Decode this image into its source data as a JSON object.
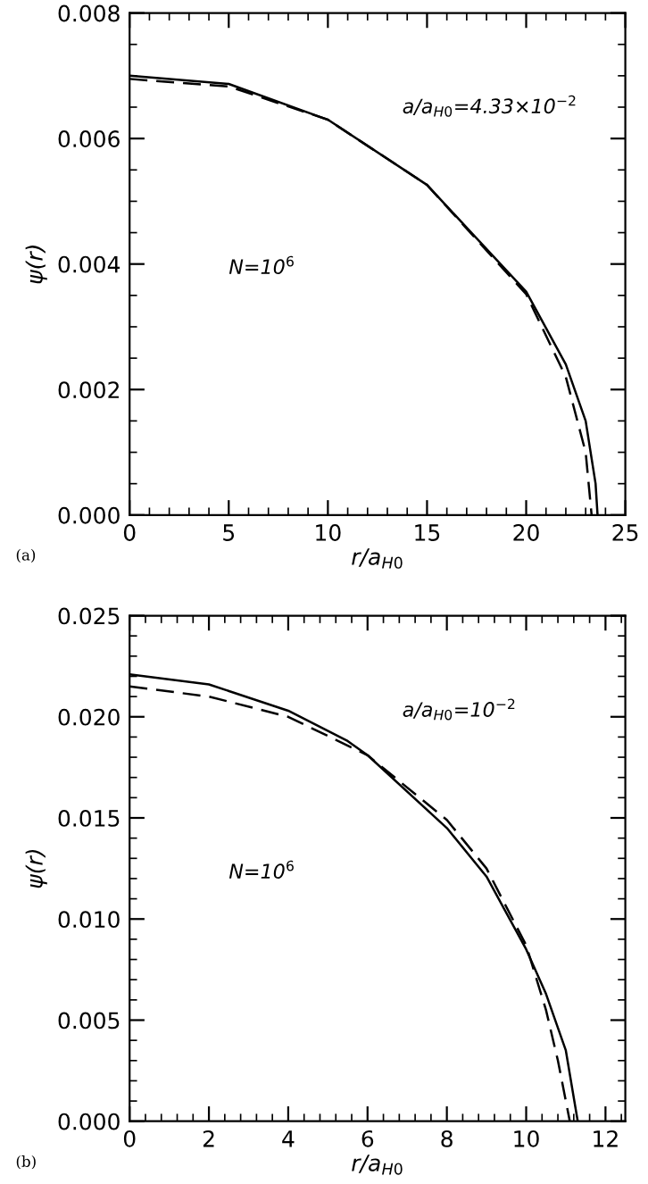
{
  "chart_data": [
    {
      "type": "line",
      "xlabel": "r/a$_{H0}$",
      "ylabel": "ψ(r)",
      "xlim": [
        0,
        25
      ],
      "ylim": [
        0,
        0.008
      ],
      "xticks": [
        0,
        5,
        10,
        15,
        20,
        25
      ],
      "yticks": [
        {
          "value": 0,
          "label": "0.000"
        },
        {
          "value": 0.002,
          "label": "0.002"
        },
        {
          "value": 0.004,
          "label": "0.004"
        },
        {
          "value": 0.006,
          "label": "0.006"
        },
        {
          "value": 0.008,
          "label": "0.008"
        }
      ],
      "grid": false,
      "legend": false,
      "annotations": [
        "a/a$_{H0}$=4.33×10$^{−2}$",
        "N=10$^{6}$",
        "(a)"
      ],
      "series": [
        {
          "color": "#000000",
          "line_style": "solid",
          "x": [
            0,
            5,
            10,
            15,
            20,
            22,
            23,
            23.5,
            23.6
          ],
          "values": [
            0.007,
            0.00687,
            0.0063,
            0.00526,
            0.00356,
            0.0024,
            0.0015,
            0.0005,
            0
          ]
        },
        {
          "color": "#000000",
          "line_style": "dashed",
          "x": [
            0,
            5,
            10,
            15,
            20,
            22,
            23,
            23.3
          ],
          "values": [
            0.00695,
            0.00683,
            0.0063,
            0.00526,
            0.00352,
            0.0022,
            0.001,
            0
          ]
        }
      ]
    },
    {
      "type": "line",
      "xlabel": "r/a$_{H0}$",
      "ylabel": "ψ(r)",
      "xlim": [
        0,
        12.5
      ],
      "ylim": [
        0,
        0.025
      ],
      "xticks": [
        0,
        2,
        4,
        6,
        8,
        10,
        12
      ],
      "yticks": [
        {
          "value": 0,
          "label": "0.000"
        },
        {
          "value": 0.005,
          "label": "0.005"
        },
        {
          "value": 0.01,
          "label": "0.010"
        },
        {
          "value": 0.015,
          "label": "0.015"
        },
        {
          "value": 0.02,
          "label": "0.020"
        },
        {
          "value": 0.025,
          "label": "0.025"
        }
      ],
      "grid": false,
      "legend": false,
      "annotations": [
        "a/a$_{H0}$=10$^{−2}$",
        "N=10$^{6}$",
        "(b)"
      ],
      "series": [
        {
          "color": "#000000",
          "line_style": "solid",
          "x": [
            0,
            2,
            4,
            5.5,
            6,
            8,
            9,
            10,
            10.5,
            11,
            11.3
          ],
          "values": [
            0.0221,
            0.0216,
            0.0203,
            0.0188,
            0.0181,
            0.0145,
            0.0121,
            0.0085,
            0.0063,
            0.0035,
            0
          ]
        },
        {
          "color": "#000000",
          "line_style": "dashed",
          "x": [
            0,
            2,
            4,
            6,
            8,
            9,
            10,
            10.5,
            10.8,
            11.1
          ],
          "values": [
            0.0215,
            0.021,
            0.02,
            0.0181,
            0.0149,
            0.0125,
            0.0087,
            0.0055,
            0.003,
            0
          ]
        }
      ]
    }
  ]
}
